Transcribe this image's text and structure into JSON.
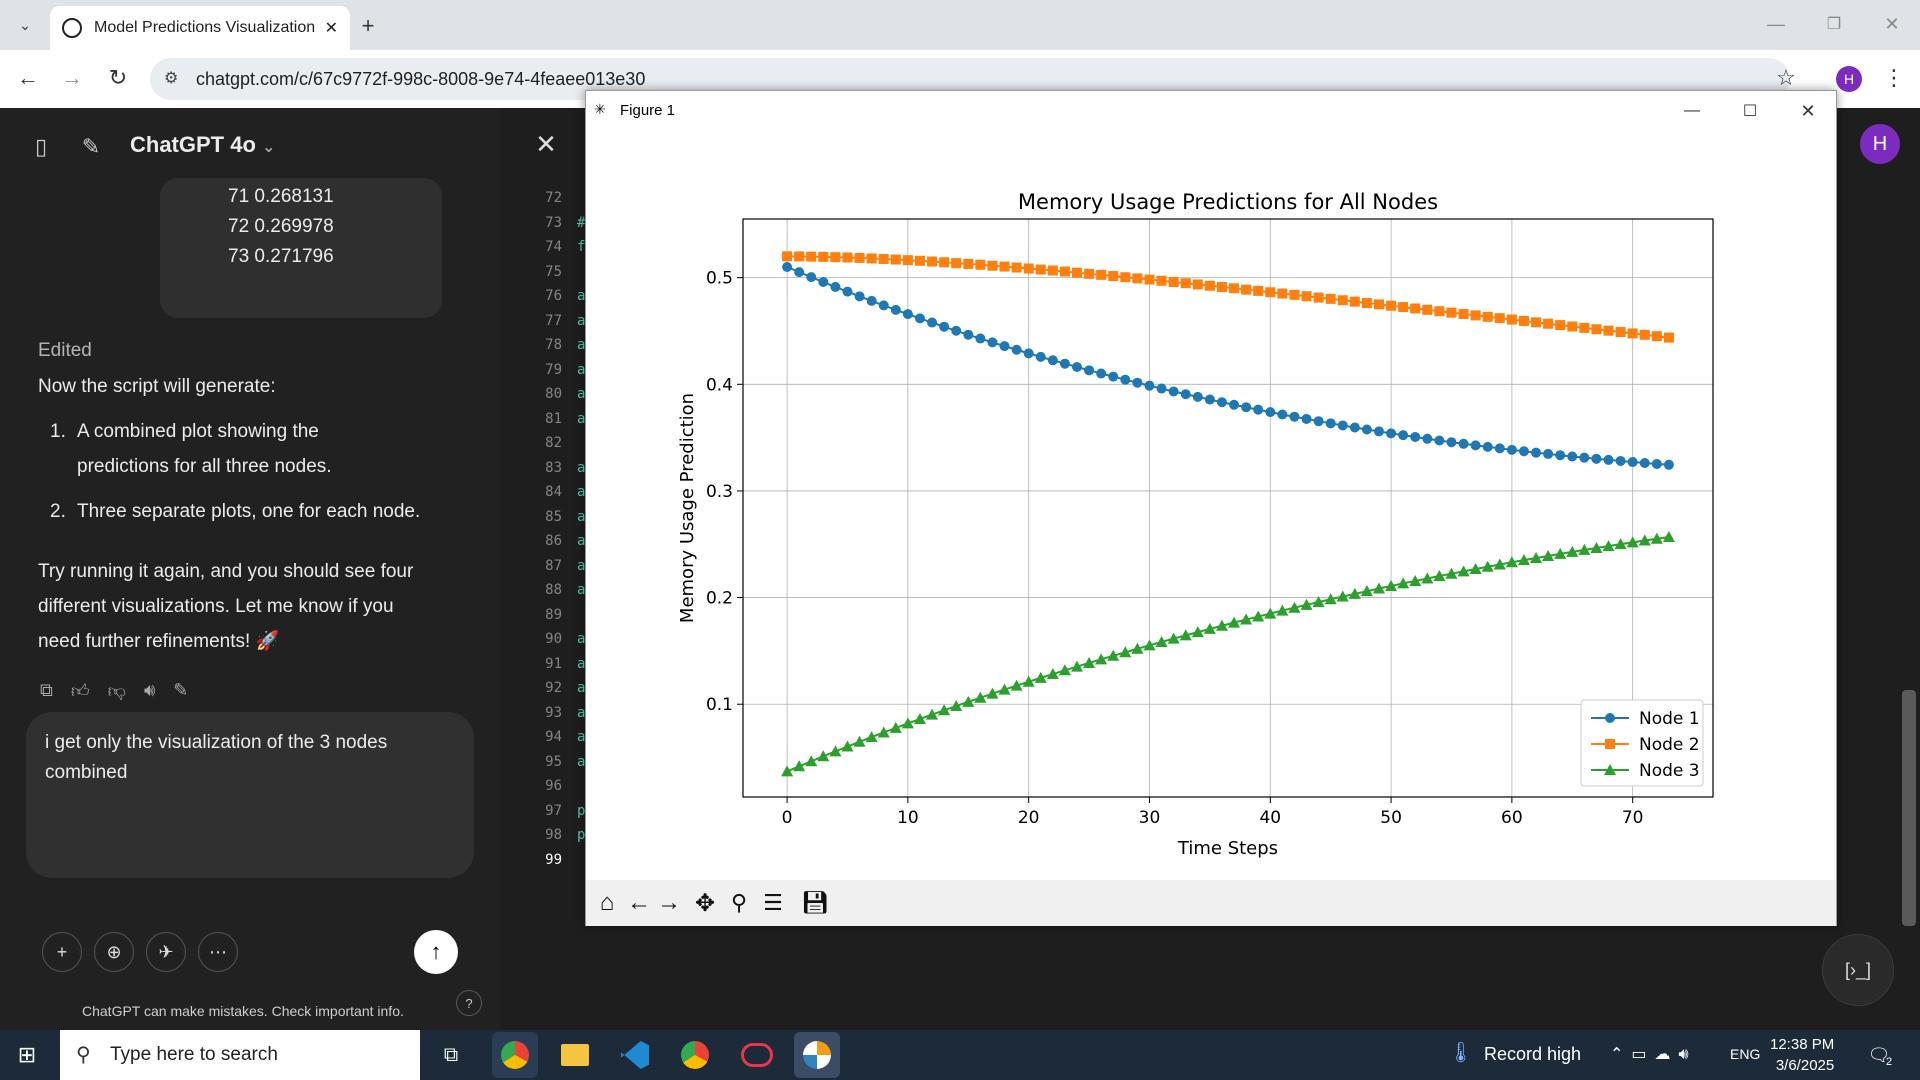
{
  "browser": {
    "tab_title": "Model Predictions Visualization",
    "url": "chatgpt.com/c/67c9772f-998c-8008-9e74-4feaee013e30",
    "profile_initial": "H"
  },
  "chat": {
    "model_label": "ChatGPT 4o",
    "code_lines": [
      "71 0.268131",
      "72 0.269978",
      "73 0.271796"
    ],
    "edited_label": "Edited",
    "intro": "Now the script will generate:",
    "list": [
      {
        "num": "1.",
        "text_a": "A combined plot showing the",
        "text_b": "predictions for all three nodes."
      },
      {
        "num": "2.",
        "text_a": "Three separate plots, one for each node.",
        "text_b": ""
      }
    ],
    "outro_1": "Try running it again, and you should see four",
    "outro_2": "different visualizations. Let me know if you",
    "outro_3": "need further refinements! 🚀",
    "input_line_1": "i get only the visualization of the 3 nodes",
    "input_line_2": "combined",
    "disclaimer": "ChatGPT can make mistakes. Check important info.",
    "help": "?",
    "avatar": "H"
  },
  "editor": {
    "line_numbers": [
      "72",
      "73",
      "74",
      "75",
      "76",
      "77",
      "78",
      "79",
      "80",
      "81",
      "82",
      "83",
      "84",
      "85",
      "86",
      "87",
      "88",
      "89",
      "90",
      "91",
      "92",
      "93",
      "94",
      "95",
      "96",
      "97",
      "98",
      "99"
    ],
    "line_starts": [
      "",
      "#",
      "f",
      "",
      "a",
      "a",
      "a",
      "a",
      "a",
      "a",
      "",
      "a",
      "a",
      "a",
      "a",
      "a",
      "a",
      "",
      "a",
      "a",
      "a",
      "a",
      "a",
      "a",
      "",
      "p",
      "p",
      ""
    ]
  },
  "figure": {
    "window_title": "Figure 1"
  },
  "chart_data": {
    "type": "line",
    "title": "Memory Usage Predictions for All Nodes",
    "xlabel": "Time Steps",
    "ylabel": "Memory Usage Prediction",
    "xlim": [
      -3.65,
      76.65
    ],
    "ylim": [
      0.013,
      0.555
    ],
    "xticks": [
      0,
      10,
      20,
      30,
      40,
      50,
      60,
      70
    ],
    "yticks": [
      0.1,
      0.2,
      0.3,
      0.4,
      0.5
    ],
    "grid": true,
    "legend_position": "lower-right",
    "x": [
      0,
      1,
      2,
      3,
      4,
      5,
      6,
      7,
      8,
      9,
      10,
      11,
      12,
      13,
      14,
      15,
      16,
      17,
      18,
      19,
      20,
      21,
      22,
      23,
      24,
      25,
      26,
      27,
      28,
      29,
      30,
      31,
      32,
      33,
      34,
      35,
      36,
      37,
      38,
      39,
      40,
      41,
      42,
      43,
      44,
      45,
      46,
      47,
      48,
      49,
      50,
      51,
      52,
      53,
      54,
      55,
      56,
      57,
      58,
      59,
      60,
      61,
      62,
      63,
      64,
      65,
      66,
      67,
      68,
      69,
      70,
      71,
      72,
      73
    ],
    "series": [
      {
        "name": "Node 1",
        "color": "#1f77b4",
        "marker": "circle",
        "values": [
          0.51,
          0.5052,
          0.5005,
          0.4959,
          0.4913,
          0.4869,
          0.4825,
          0.4782,
          0.474,
          0.4698,
          0.4658,
          0.4618,
          0.4579,
          0.454,
          0.4502,
          0.4465,
          0.4429,
          0.4393,
          0.4358,
          0.4324,
          0.429,
          0.4257,
          0.4225,
          0.4193,
          0.4162,
          0.4131,
          0.4101,
          0.4072,
          0.4043,
          0.4015,
          0.3987,
          0.396,
          0.3933,
          0.3907,
          0.3882,
          0.3857,
          0.3832,
          0.3808,
          0.3785,
          0.3762,
          0.3739,
          0.3717,
          0.3696,
          0.3675,
          0.3654,
          0.3634,
          0.3614,
          0.3595,
          0.3576,
          0.3558,
          0.354,
          0.3523,
          0.3506,
          0.3489,
          0.3473,
          0.3457,
          0.3442,
          0.3427,
          0.3413,
          0.3399,
          0.3385,
          0.3372,
          0.3359,
          0.3347,
          0.3335,
          0.3323,
          0.3312,
          0.3301,
          0.3291,
          0.3281,
          0.3271,
          0.3262,
          0.3253,
          0.3245
        ]
      },
      {
        "name": "Node 2",
        "color": "#ff7f0e",
        "marker": "square",
        "values": [
          0.52,
          0.5199,
          0.5197,
          0.5195,
          0.5192,
          0.5189,
          0.5185,
          0.518,
          0.5175,
          0.517,
          0.5164,
          0.5158,
          0.5151,
          0.5144,
          0.5136,
          0.5129,
          0.5121,
          0.5112,
          0.5104,
          0.5095,
          0.5086,
          0.5076,
          0.5067,
          0.5057,
          0.5047,
          0.5036,
          0.5026,
          0.5015,
          0.5004,
          0.4993,
          0.4982,
          0.4971,
          0.4959,
          0.4948,
          0.4936,
          0.4924,
          0.4912,
          0.49,
          0.4888,
          0.4876,
          0.4863,
          0.4851,
          0.4839,
          0.4826,
          0.4813,
          0.4801,
          0.4788,
          0.4775,
          0.4762,
          0.4749,
          0.4737,
          0.4724,
          0.4711,
          0.4698,
          0.4685,
          0.4672,
          0.4659,
          0.4646,
          0.4633,
          0.462,
          0.4607,
          0.4594,
          0.4581,
          0.4568,
          0.4555,
          0.4542,
          0.4529,
          0.4516,
          0.4503,
          0.449,
          0.4477,
          0.4464,
          0.4451,
          0.4438
        ]
      },
      {
        "name": "Node 3",
        "color": "#2ca02c",
        "marker": "triangle",
        "values": [
          0.037,
          0.0418,
          0.0465,
          0.0512,
          0.0558,
          0.0603,
          0.0648,
          0.0692,
          0.0735,
          0.0778,
          0.082,
          0.0862,
          0.0903,
          0.0943,
          0.0983,
          0.1022,
          0.1061,
          0.1099,
          0.1137,
          0.1174,
          0.1211,
          0.1247,
          0.1283,
          0.1318,
          0.1353,
          0.1387,
          0.1421,
          0.1454,
          0.1487,
          0.152,
          0.1552,
          0.1584,
          0.1615,
          0.1646,
          0.1676,
          0.1706,
          0.1736,
          0.1765,
          0.1794,
          0.1822,
          0.185,
          0.1878,
          0.1905,
          0.1932,
          0.1958,
          0.1984,
          0.201,
          0.2035,
          0.206,
          0.2085,
          0.2109,
          0.2133,
          0.2156,
          0.2179,
          0.2202,
          0.2224,
          0.2246,
          0.2268,
          0.2289,
          0.231,
          0.2331,
          0.2351,
          0.2371,
          0.239,
          0.241,
          0.2429,
          0.2447,
          0.2465,
          0.2483,
          0.2501,
          0.2518,
          0.2535,
          0.2552,
          0.2568
        ]
      }
    ]
  },
  "taskbar": {
    "search_placeholder": "Type here to search",
    "weather": "Record high",
    "lang": "ENG",
    "time": "12:38 PM",
    "date": "3/6/2025",
    "notif_count": "2"
  }
}
